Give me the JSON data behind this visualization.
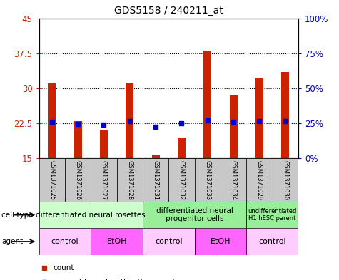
{
  "title": "GDS5158 / 240211_at",
  "samples": [
    "GSM1371025",
    "GSM1371026",
    "GSM1371027",
    "GSM1371028",
    "GSM1371031",
    "GSM1371032",
    "GSM1371033",
    "GSM1371034",
    "GSM1371029",
    "GSM1371030"
  ],
  "counts": [
    31.0,
    23.0,
    21.0,
    31.2,
    15.8,
    19.5,
    38.0,
    28.5,
    32.2,
    33.5
  ],
  "percentiles": [
    26.0,
    24.5,
    24.0,
    26.5,
    22.5,
    25.0,
    27.0,
    26.0,
    26.5,
    26.5
  ],
  "ylim_left": [
    15,
    45
  ],
  "ylim_right": [
    0,
    100
  ],
  "yticks_left": [
    15,
    22.5,
    30,
    37.5,
    45
  ],
  "yticks_right": [
    0,
    25,
    50,
    75,
    100
  ],
  "ytick_labels_left": [
    "15",
    "22.5",
    "30",
    "37.5",
    "45"
  ],
  "ytick_labels_right": [
    "0%",
    "25%",
    "50%",
    "75%",
    "100%"
  ],
  "cell_type_groups": [
    {
      "label": "differentiated neural rosettes",
      "start": 0,
      "end": 3,
      "color": "#ccffcc"
    },
    {
      "label": "differentiated neural\nprogenitor cells",
      "start": 4,
      "end": 7,
      "color": "#99ee99"
    },
    {
      "label": "undifferentiated\nH1 hESC parent",
      "start": 8,
      "end": 9,
      "color": "#99ee99"
    }
  ],
  "agent_groups": [
    {
      "label": "control",
      "start": 0,
      "end": 1,
      "color": "#ffccff"
    },
    {
      "label": "EtOH",
      "start": 2,
      "end": 3,
      "color": "#ff66ff"
    },
    {
      "label": "control",
      "start": 4,
      "end": 5,
      "color": "#ffccff"
    },
    {
      "label": "EtOH",
      "start": 6,
      "end": 7,
      "color": "#ff66ff"
    },
    {
      "label": "control",
      "start": 8,
      "end": 9,
      "color": "#ffccff"
    }
  ],
  "bar_color": "#cc2200",
  "dot_color": "#0000cc",
  "sample_bg_color": "#c8c8c8",
  "left_axis_color": "#cc2200",
  "right_axis_color": "#0000cc",
  "bar_width": 0.3
}
